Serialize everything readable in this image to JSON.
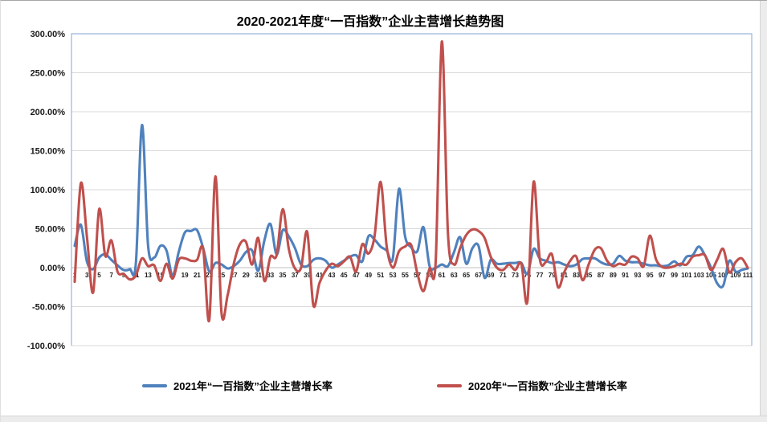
{
  "chart": {
    "title": "2020-2021年度“一百指数”企业主营增长趋势图",
    "legend": [
      {
        "label": "2021年“一百指数”企业主营增长率",
        "color": "#4F81BD"
      },
      {
        "label": "2020年“一百指数”企业主营增长率",
        "color": "#C0504D"
      }
    ]
  },
  "chart_data": {
    "type": "line",
    "title": "2020-2021年度“一百指数”企业主营增长趋势图",
    "xlabel": "",
    "ylabel": "",
    "ylim": [
      -100,
      300
    ],
    "y_tick_step_percent": 50,
    "y_tick_labels": [
      "300.00%",
      "250.00%",
      "200.00%",
      "150.00%",
      "100.00%",
      "50.00%",
      "0.00%",
      "-50.00%",
      "-100.00%"
    ],
    "x_tick_labels_shown": "odd numbers 1 through 111",
    "grid": "horizontal",
    "legend_position": "bottom",
    "line_style": "smoothed",
    "categories": [
      1,
      2,
      3,
      4,
      5,
      6,
      7,
      8,
      9,
      10,
      11,
      12,
      13,
      14,
      15,
      16,
      17,
      18,
      19,
      20,
      21,
      22,
      23,
      24,
      25,
      26,
      27,
      28,
      29,
      30,
      31,
      32,
      33,
      34,
      35,
      36,
      37,
      38,
      39,
      40,
      41,
      42,
      43,
      44,
      45,
      46,
      47,
      48,
      49,
      50,
      51,
      52,
      53,
      54,
      55,
      56,
      57,
      58,
      59,
      60,
      61,
      62,
      63,
      64,
      65,
      66,
      67,
      68,
      69,
      70,
      71,
      72,
      73,
      74,
      75,
      76,
      77,
      78,
      79,
      80,
      81,
      82,
      83,
      84,
      85,
      86,
      87,
      88,
      89,
      90,
      91,
      92,
      93,
      94,
      95,
      96,
      97,
      98,
      99,
      100,
      101,
      102,
      103,
      104,
      105,
      106,
      107,
      108,
      109,
      110,
      111
    ],
    "series": [
      {
        "name": "2021年“一百指数”企业主营增长率",
        "color": "#4F81BD",
        "unit": "%",
        "values": [
          28,
          55,
          8,
          -2,
          13,
          17,
          10,
          3,
          -3,
          -2,
          6,
          183,
          28,
          13,
          28,
          22,
          -10,
          20,
          45,
          47,
          48,
          25,
          -5,
          6,
          4,
          -1,
          2,
          9,
          20,
          22,
          -4,
          35,
          56,
          17,
          48,
          40,
          25,
          4,
          2,
          10,
          12,
          9,
          0,
          4,
          9,
          14,
          16,
          8,
          40,
          36,
          27,
          22,
          12,
          101,
          40,
          26,
          21,
          52,
          2,
          0,
          4,
          2,
          20,
          39,
          5,
          25,
          28,
          -13,
          10,
          5,
          5,
          6,
          6,
          6,
          -8,
          24,
          12,
          9,
          6,
          7,
          4,
          2,
          4,
          11,
          12,
          12,
          7,
          4,
          5,
          15,
          9,
          7,
          7,
          5,
          3,
          3,
          2,
          3,
          8,
          3,
          14,
          16,
          27,
          16,
          0,
          -20,
          -23,
          9,
          -5,
          -3,
          -1
        ]
      },
      {
        "name": "2020年“一百指数”企业主营增长率",
        "color": "#C0504D",
        "unit": "%",
        "values": [
          -18,
          108,
          40,
          -32,
          75,
          15,
          35,
          -5,
          -8,
          -15,
          -10,
          12,
          2,
          3,
          -17,
          5,
          -14,
          10,
          12,
          9,
          10,
          24,
          -67,
          117,
          -58,
          -35,
          5,
          30,
          33,
          4,
          38,
          -17,
          14,
          16,
          75,
          24,
          -1,
          0,
          46,
          -48,
          -20,
          -4,
          5,
          2,
          8,
          14,
          -5,
          30,
          18,
          40,
          110,
          27,
          0,
          21,
          27,
          29,
          -7,
          -30,
          -1,
          8,
          290,
          45,
          4,
          25,
          42,
          49,
          47,
          38,
          14,
          0,
          -3,
          4,
          -3,
          5,
          -43,
          110,
          12,
          7,
          17,
          -25,
          -6,
          9,
          14,
          -16,
          4,
          23,
          25,
          9,
          2,
          5,
          4,
          14,
          12,
          2,
          41,
          11,
          1,
          0,
          2,
          5,
          4,
          14,
          16,
          16,
          -3,
          10,
          24,
          -6,
          7,
          12,
          0
        ]
      }
    ]
  }
}
